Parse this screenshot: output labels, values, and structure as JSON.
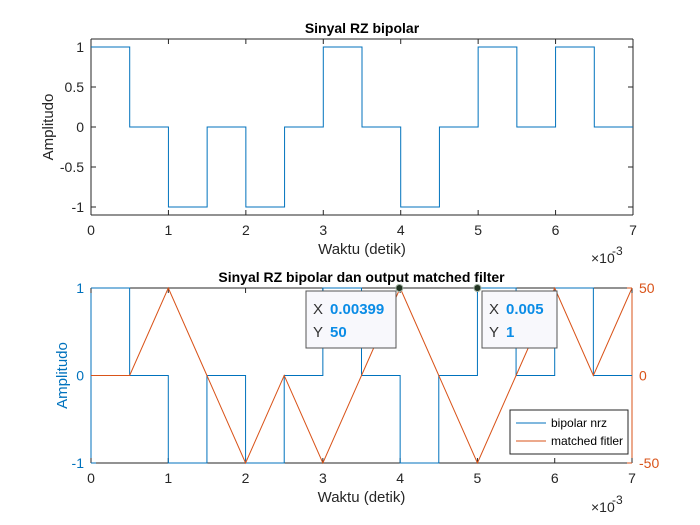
{
  "colors": {
    "blue": "#0072BD",
    "orange": "#D95319",
    "axis": "#262626",
    "datatip_bg": "#F8F8FC",
    "datatip_border": "#555555",
    "datatip_value": "#0A8CE6"
  },
  "chart_data": [
    {
      "type": "line",
      "title": "Sinyal RZ bipolar",
      "xlabel": "Waktu (detik)",
      "ylabel": "Amplitudo",
      "xlim": [
        0,
        0.007
      ],
      "ylim": [
        -1.1,
        1.1
      ],
      "x_exponent_label": "×10",
      "x_exponent_power": "-3",
      "x_ticks": [
        0,
        0.001,
        0.002,
        0.003,
        0.004,
        0.005,
        0.006,
        0.007
      ],
      "x_tick_labels": [
        "0",
        "1",
        "2",
        "3",
        "4",
        "5",
        "6",
        "7"
      ],
      "y_ticks": [
        1,
        0.5,
        0,
        -0.5,
        -1
      ],
      "y_tick_labels": [
        "1",
        "0.5",
        "0",
        "-0.5",
        "-1"
      ],
      "grid": false,
      "series": [
        {
          "color": "#0072BD",
          "x": [
            0,
            0.0005,
            0.0005,
            0.001,
            0.001,
            0.0015,
            0.0015,
            0.002,
            0.002,
            0.0025,
            0.0025,
            0.003,
            0.003,
            0.0035,
            0.0035,
            0.004,
            0.004,
            0.0045,
            0.0045,
            0.005,
            0.005,
            0.0055,
            0.0055,
            0.006,
            0.006,
            0.0065,
            0.0065,
            0.007
          ],
          "y": [
            1,
            1,
            0,
            0,
            -1,
            -1,
            0,
            0,
            -1,
            -1,
            0,
            0,
            1,
            1,
            0,
            0,
            -1,
            -1,
            0,
            0,
            1,
            1,
            0,
            0,
            1,
            1,
            0,
            0
          ]
        }
      ]
    },
    {
      "type": "line",
      "title": "Sinyal RZ bipolar dan output matched filter",
      "xlabel": "Waktu (detik)",
      "ylabel_left": "Amplitudo",
      "xlim": [
        0,
        0.007
      ],
      "ylim_left": [
        -1,
        1
      ],
      "ylim_right": [
        -50,
        50
      ],
      "x_exponent_label": "×10",
      "x_exponent_power": "-3",
      "x_ticks": [
        0,
        0.001,
        0.002,
        0.003,
        0.004,
        0.005,
        0.006,
        0.007
      ],
      "x_tick_labels": [
        "0",
        "1",
        "2",
        "3",
        "4",
        "5",
        "6",
        "7"
      ],
      "y_left_ticks": [
        1,
        0,
        -1
      ],
      "y_left_tick_labels": [
        "1",
        "0",
        "-1"
      ],
      "y_right_ticks": [
        50,
        0,
        -50
      ],
      "y_right_tick_labels": [
        "50",
        "0",
        "-50"
      ],
      "grid": false,
      "legend_placement": "bottom-right",
      "series": [
        {
          "name": "bipolar nrz",
          "axis": "left",
          "color": "#0072BD",
          "x": [
            0,
            0.0005,
            0.0005,
            0.001,
            0.001,
            0.0015,
            0.0015,
            0.002,
            0.002,
            0.0025,
            0.0025,
            0.003,
            0.003,
            0.0035,
            0.0035,
            0.004,
            0.004,
            0.0045,
            0.0045,
            0.005,
            0.005,
            0.0055,
            0.0055,
            0.006,
            0.006,
            0.0065,
            0.0065,
            0.007
          ],
          "y": [
            1,
            1,
            0,
            0,
            -1,
            -1,
            0,
            0,
            -1,
            -1,
            0,
            0,
            1,
            1,
            0,
            0,
            -1,
            -1,
            0,
            0,
            1,
            1,
            0,
            0,
            1,
            1,
            0,
            0
          ]
        },
        {
          "name": "matched fitler",
          "axis": "right",
          "color": "#D95319",
          "x": [
            0,
            0.0005,
            0.001,
            0.0015,
            0.002,
            0.0025,
            0.003,
            0.0035,
            0.004,
            0.0045,
            0.005,
            0.0055,
            0.006,
            0.0065,
            0.007
          ],
          "y": [
            0,
            0,
            50,
            0,
            -50,
            0,
            -50,
            0,
            50,
            0,
            -50,
            0,
            50,
            0,
            50
          ]
        }
      ],
      "datatips": [
        {
          "x_label": "X",
          "x_value": "0.00399",
          "y_label": "Y",
          "y_value": "50",
          "at_x": 0.00399,
          "at_y": 50,
          "axis": "right"
        },
        {
          "x_label": "X",
          "x_value": "0.005",
          "y_label": "Y",
          "y_value": "1",
          "at_x": 0.005,
          "at_y": 1,
          "axis": "left"
        }
      ]
    }
  ]
}
